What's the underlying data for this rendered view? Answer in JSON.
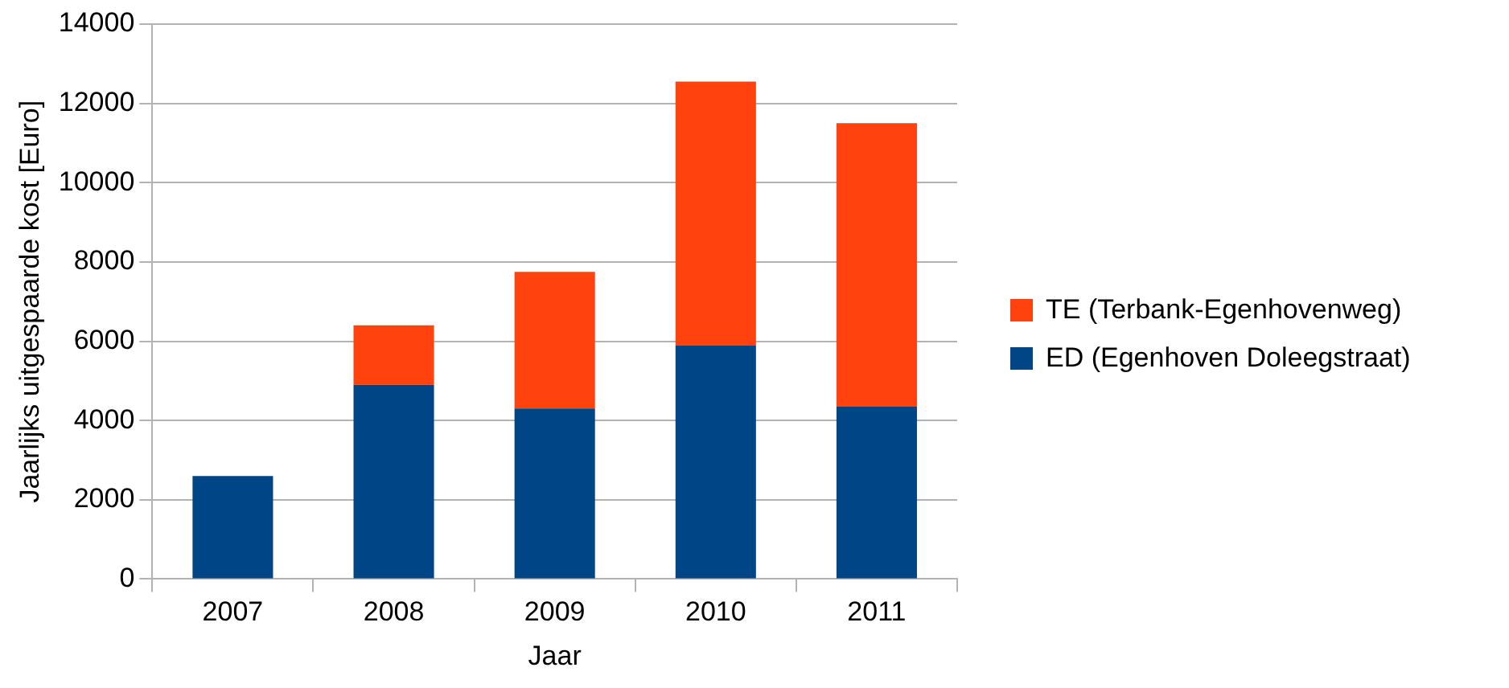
{
  "chart_data": {
    "type": "bar",
    "stacked": true,
    "xlabel": "Jaar",
    "ylabel": "Jaarlijks uitgespaarde kost [Euro]",
    "categories": [
      "2007",
      "2008",
      "2009",
      "2010",
      "2011"
    ],
    "series": [
      {
        "name": "ED (Egenhoven Doleegstraat)",
        "color": "#004586",
        "values": [
          2600,
          4900,
          4300,
          5900,
          4350
        ]
      },
      {
        "name": "TE (Terbank-Egenhovenweg)",
        "color": "#ff420e",
        "values": [
          null,
          1500,
          3450,
          6650,
          7150
        ]
      }
    ],
    "ylim": [
      0,
      14000
    ],
    "yticks": [
      0,
      2000,
      4000,
      6000,
      8000,
      10000,
      12000,
      14000
    ],
    "grid": "y",
    "legend": "right"
  }
}
